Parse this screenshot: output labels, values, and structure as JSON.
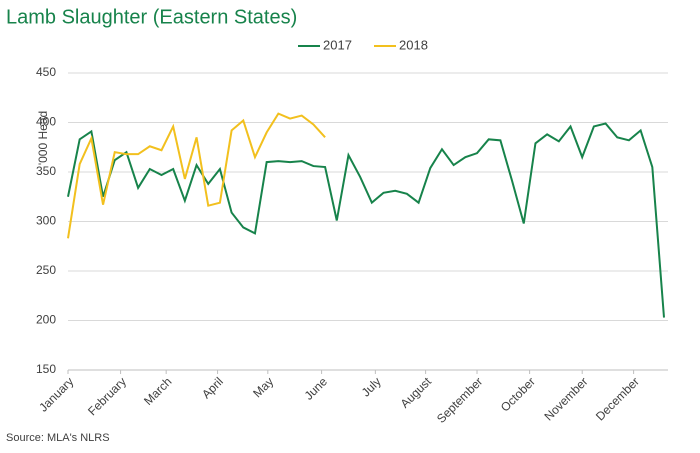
{
  "chart_data": {
    "type": "line",
    "title": "Lamb Slaughter (Eastern States)",
    "y_label": "'000 Head",
    "source": "Source: MLA's NLRS",
    "x": [
      1,
      2,
      3,
      4,
      5,
      6,
      7,
      8,
      9,
      10,
      11,
      12,
      13,
      14,
      15,
      16,
      17,
      18,
      19,
      20,
      21,
      22,
      23,
      24,
      25,
      26,
      27,
      28,
      29,
      30,
      31,
      32,
      33,
      34,
      35,
      36,
      37,
      38,
      39,
      40,
      41,
      42,
      43,
      44,
      45,
      46,
      47,
      48,
      49,
      50,
      51,
      52
    ],
    "xlim": [
      1,
      52
    ],
    "xticks": [
      {
        "value": 1,
        "label": "January"
      },
      {
        "value": 5.5,
        "label": "February"
      },
      {
        "value": 9.4,
        "label": "March"
      },
      {
        "value": 13.8,
        "label": "April"
      },
      {
        "value": 18.1,
        "label": "May"
      },
      {
        "value": 22.7,
        "label": "June"
      },
      {
        "value": 27.3,
        "label": "July"
      },
      {
        "value": 31.6,
        "label": "August"
      },
      {
        "value": 36,
        "label": "September"
      },
      {
        "value": 40.5,
        "label": "October"
      },
      {
        "value": 45,
        "label": "November"
      },
      {
        "value": 49.4,
        "label": "December"
      }
    ],
    "ylim": [
      150,
      450
    ],
    "yticks": [
      150,
      200,
      250,
      300,
      350,
      400,
      450
    ],
    "grid": true,
    "legend": "top",
    "series": [
      {
        "name": "2017",
        "color": "#17834b",
        "values": [
          325,
          383,
          391,
          325,
          362,
          370,
          334,
          353,
          347,
          353,
          321,
          357,
          338,
          353,
          309,
          294,
          288,
          360,
          361,
          360,
          361,
          356,
          355,
          301,
          367,
          345,
          319,
          329,
          331,
          328,
          319,
          354,
          373,
          357,
          365,
          369,
          383,
          382,
          341,
          298,
          379,
          388,
          381,
          396,
          365,
          396,
          399,
          385,
          382,
          392,
          355,
          203
        ]
      },
      {
        "name": "2018",
        "color": "#f2c01e",
        "values": [
          283,
          358,
          384,
          317,
          370,
          368,
          368,
          376,
          372,
          396,
          343,
          385,
          316,
          319,
          392,
          402,
          365,
          390,
          409,
          404,
          407,
          398,
          385,
          null,
          null,
          null,
          null,
          null,
          null,
          null,
          null,
          null,
          null,
          null,
          null,
          null,
          null,
          null,
          null,
          null,
          null,
          null,
          null,
          null,
          null,
          null,
          null,
          null,
          null,
          null,
          null,
          null
        ]
      }
    ]
  }
}
